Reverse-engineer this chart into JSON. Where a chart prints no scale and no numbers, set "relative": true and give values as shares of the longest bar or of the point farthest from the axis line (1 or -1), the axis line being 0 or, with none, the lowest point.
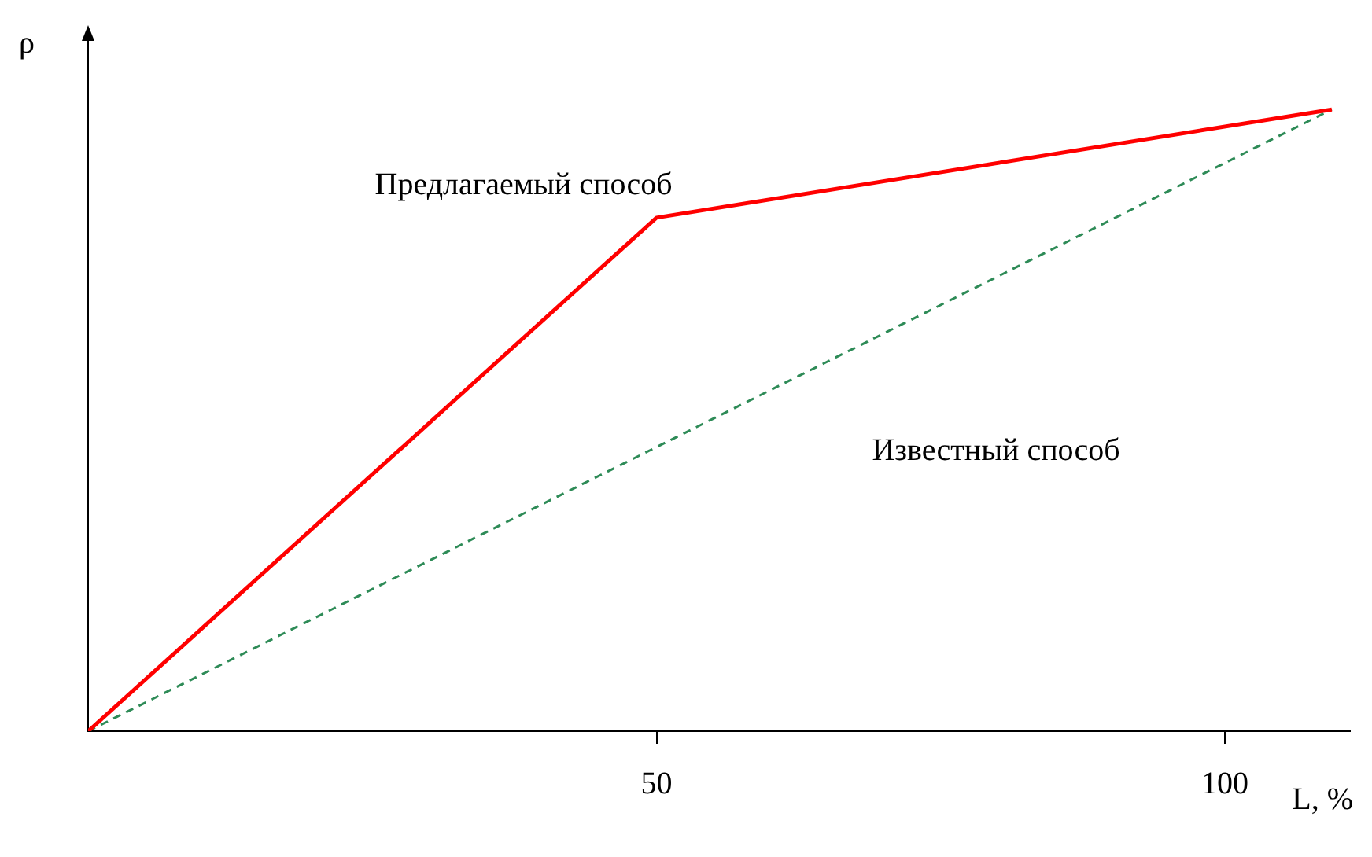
{
  "chart_data": {
    "type": "line",
    "xlabel": "L, %",
    "ylabel": "ρ",
    "relative": true,
    "xlim": [
      0,
      111
    ],
    "xticks": [
      50,
      100
    ],
    "grid": false,
    "legend": false,
    "marker": "none",
    "series": [
      {
        "name": "Предлагаемый способ",
        "color": "#ff0000",
        "x": [
          0,
          50,
          109.4
        ],
        "values": [
          0,
          0.826,
          1
        ],
        "line_style": "solid"
      },
      {
        "name": "Известный способ",
        "color": "#2e8b57",
        "x": [
          0,
          109.4
        ],
        "values": [
          0,
          1
        ],
        "line_style": "dashed"
      }
    ]
  }
}
